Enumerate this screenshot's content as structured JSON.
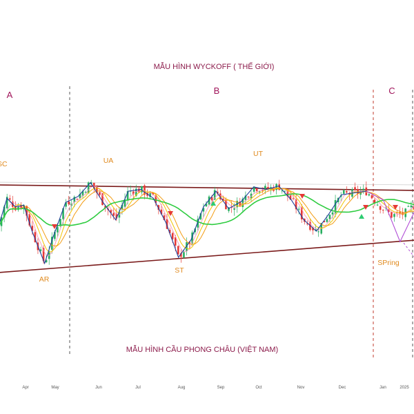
{
  "chart_data": {
    "type": "candlestick",
    "title": "MẪU HÌNH WYCKOFF ( THẾ GIỚI)",
    "subtitle": "MẪU HÌNH CẦU PHONG CHÂU (VIỆT NAM)",
    "x_tick_labels": [
      "Apr",
      "May",
      "Jun",
      "Jul",
      "Aug",
      "Sep",
      "Oct",
      "Nov",
      "Dec",
      "Jan",
      "2025"
    ],
    "phases": [
      "A",
      "B",
      "C"
    ],
    "events": [
      "SC",
      "AR",
      "UA",
      "ST",
      "UT",
      "SPring"
    ],
    "close_path": [
      {
        "x": 0,
        "y": 0.48
      },
      {
        "x": 2,
        "y": 0.8
      },
      {
        "x": 4,
        "y": 0.7
      },
      {
        "x": 6,
        "y": 0.72
      },
      {
        "x": 8,
        "y": 0.42
      },
      {
        "x": 11,
        "y": 0.05
      },
      {
        "x": 13,
        "y": 0.35
      },
      {
        "x": 16,
        "y": 0.75
      },
      {
        "x": 19,
        "y": 0.82
      },
      {
        "x": 22,
        "y": 0.98
      },
      {
        "x": 25,
        "y": 0.75
      },
      {
        "x": 28,
        "y": 0.55
      },
      {
        "x": 31,
        "y": 0.88
      },
      {
        "x": 34,
        "y": 0.9
      },
      {
        "x": 37,
        "y": 0.8
      },
      {
        "x": 40,
        "y": 0.52
      },
      {
        "x": 43,
        "y": 0.12
      },
      {
        "x": 46,
        "y": 0.32
      },
      {
        "x": 49,
        "y": 0.7
      },
      {
        "x": 52,
        "y": 0.88
      },
      {
        "x": 55,
        "y": 0.68
      },
      {
        "x": 58,
        "y": 0.76
      },
      {
        "x": 61,
        "y": 0.93
      },
      {
        "x": 64,
        "y": 0.9
      },
      {
        "x": 67,
        "y": 0.94
      },
      {
        "x": 70,
        "y": 0.78
      },
      {
        "x": 73,
        "y": 0.55
      },
      {
        "x": 76,
        "y": 0.42
      },
      {
        "x": 79,
        "y": 0.62
      },
      {
        "x": 82,
        "y": 0.84
      },
      {
        "x": 85,
        "y": 0.86
      },
      {
        "x": 88,
        "y": 0.88
      },
      {
        "x": 91,
        "y": 0.72
      },
      {
        "x": 94,
        "y": 0.6
      },
      {
        "x": 97,
        "y": 0.62
      },
      {
        "x": 100,
        "y": 0.74
      }
    ],
    "colors": {
      "title": "#8b1a4a",
      "phase_label": "#a0145a",
      "event_label": "#e08a1e",
      "channel_line": "#7a1a1a",
      "zigzag": "#1f3d99",
      "spring_zigzag": "#b14fd6",
      "ma_green": "#2ecc40",
      "ma_yellow": "#f2c400",
      "ma_orange": "#f39c12",
      "ma_pink": "#f48fb1",
      "candle_up": "#27ae60",
      "candle_down": "#e53935",
      "sell_marker": "#e53935",
      "buy_marker": "#2ecc71",
      "divider": "#555555",
      "divider_red": "#c0392b"
    }
  }
}
